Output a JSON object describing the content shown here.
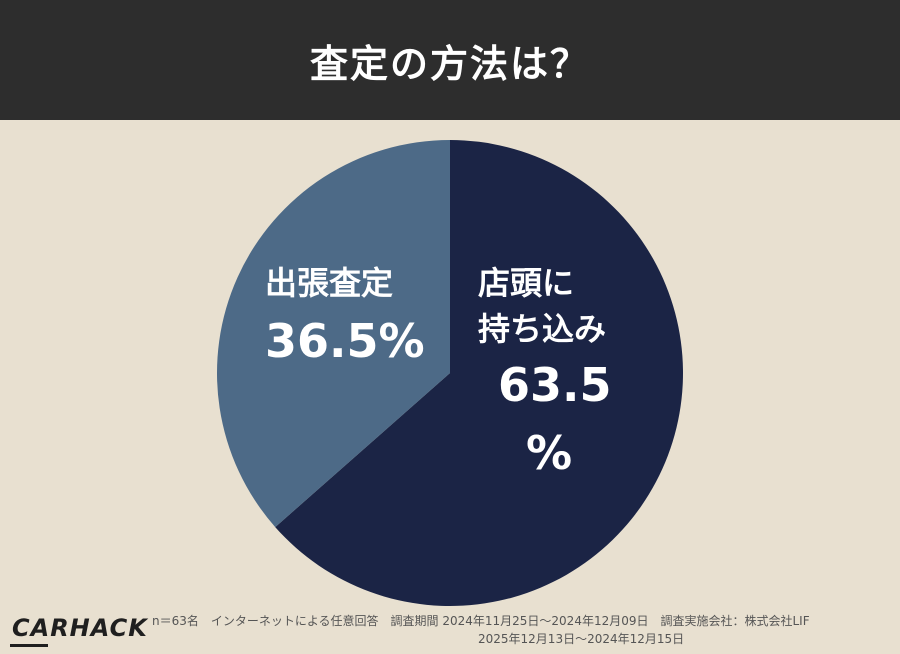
{
  "header": {
    "title": "査定の方法は？"
  },
  "colors": {
    "header_bg": "#2d2d2d",
    "background": "#e8e0d0",
    "slice_dark": "#1b2445",
    "slice_light": "#4d6a87",
    "label_text": "#ffffff"
  },
  "chart_data": {
    "type": "pie",
    "title": "査定の方法は？",
    "slices": [
      {
        "label": "店頭に持ち込み",
        "value": 63.5,
        "color": "#1b2445"
      },
      {
        "label": "出張査定",
        "value": 36.5,
        "color": "#4d6a87"
      }
    ],
    "start": "12 o'clock",
    "direction": "clockwise"
  },
  "labels": {
    "instore_line1": "店頭に",
    "instore_line2": "持ち込み",
    "instore_pct_num": "63.5",
    "instore_pct_sign": "%",
    "visit_name": "出張査定",
    "visit_pct": "36.5%"
  },
  "footer": {
    "logo": "CARHACK",
    "note_line1": "n＝63名　インターネットによる任意回答　調査期間 2024年11月25日〜2024年12月09日　調査実施会社：株式会社LIF",
    "note_line2": "2025年12月13日〜2024年12月15日"
  }
}
